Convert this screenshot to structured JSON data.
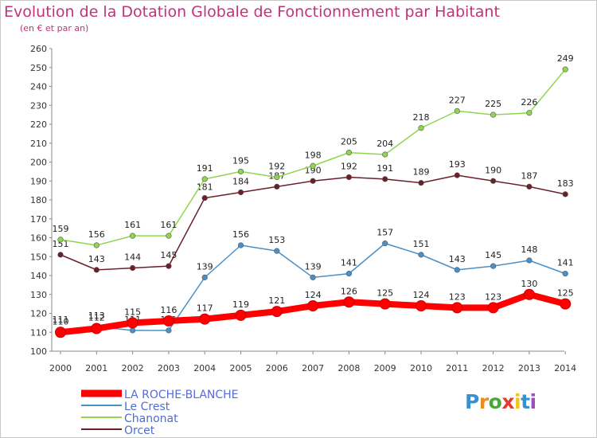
{
  "title": "Evolution de la Dotation Globale de Fonctionnement par Habitant",
  "subtitle": "(en € et par an)",
  "logo": "Proxiti",
  "chart_data": {
    "type": "line",
    "title": "Evolution de la Dotation Globale de Fonctionnement par Habitant",
    "subtitle": "(en € et par an)",
    "x": [
      2000,
      2001,
      2002,
      2003,
      2004,
      2005,
      2006,
      2007,
      2008,
      2009,
      2010,
      2011,
      2012,
      2013,
      2014
    ],
    "ylim": [
      100,
      260
    ],
    "yticks": [
      100,
      110,
      120,
      130,
      140,
      150,
      160,
      170,
      180,
      190,
      200,
      210,
      220,
      230,
      240,
      250,
      260
    ],
    "grid": "none",
    "legend": "bottom-left",
    "series": [
      {
        "name": "LA ROCHE-BLANCHE",
        "color": "#ff0000",
        "values": [
          110,
          112,
          115,
          116,
          117,
          119,
          121,
          124,
          126,
          125,
          124,
          123,
          123,
          130,
          125
        ]
      },
      {
        "name": "Le Crest",
        "color": "#4a90c8",
        "values": [
          111,
          113,
          111,
          111,
          139,
          156,
          153,
          139,
          141,
          157,
          151,
          143,
          145,
          148,
          141
        ]
      },
      {
        "name": "Chanonat",
        "color": "#8fd64f",
        "values": [
          159,
          156,
          161,
          161,
          191,
          195,
          192,
          198,
          205,
          204,
          218,
          227,
          225,
          226,
          249
        ]
      },
      {
        "name": "Orcet",
        "color": "#6b1f2a",
        "values": [
          151,
          143,
          144,
          145,
          181,
          184,
          187,
          190,
          192,
          191,
          189,
          193,
          190,
          187,
          183
        ]
      }
    ]
  }
}
